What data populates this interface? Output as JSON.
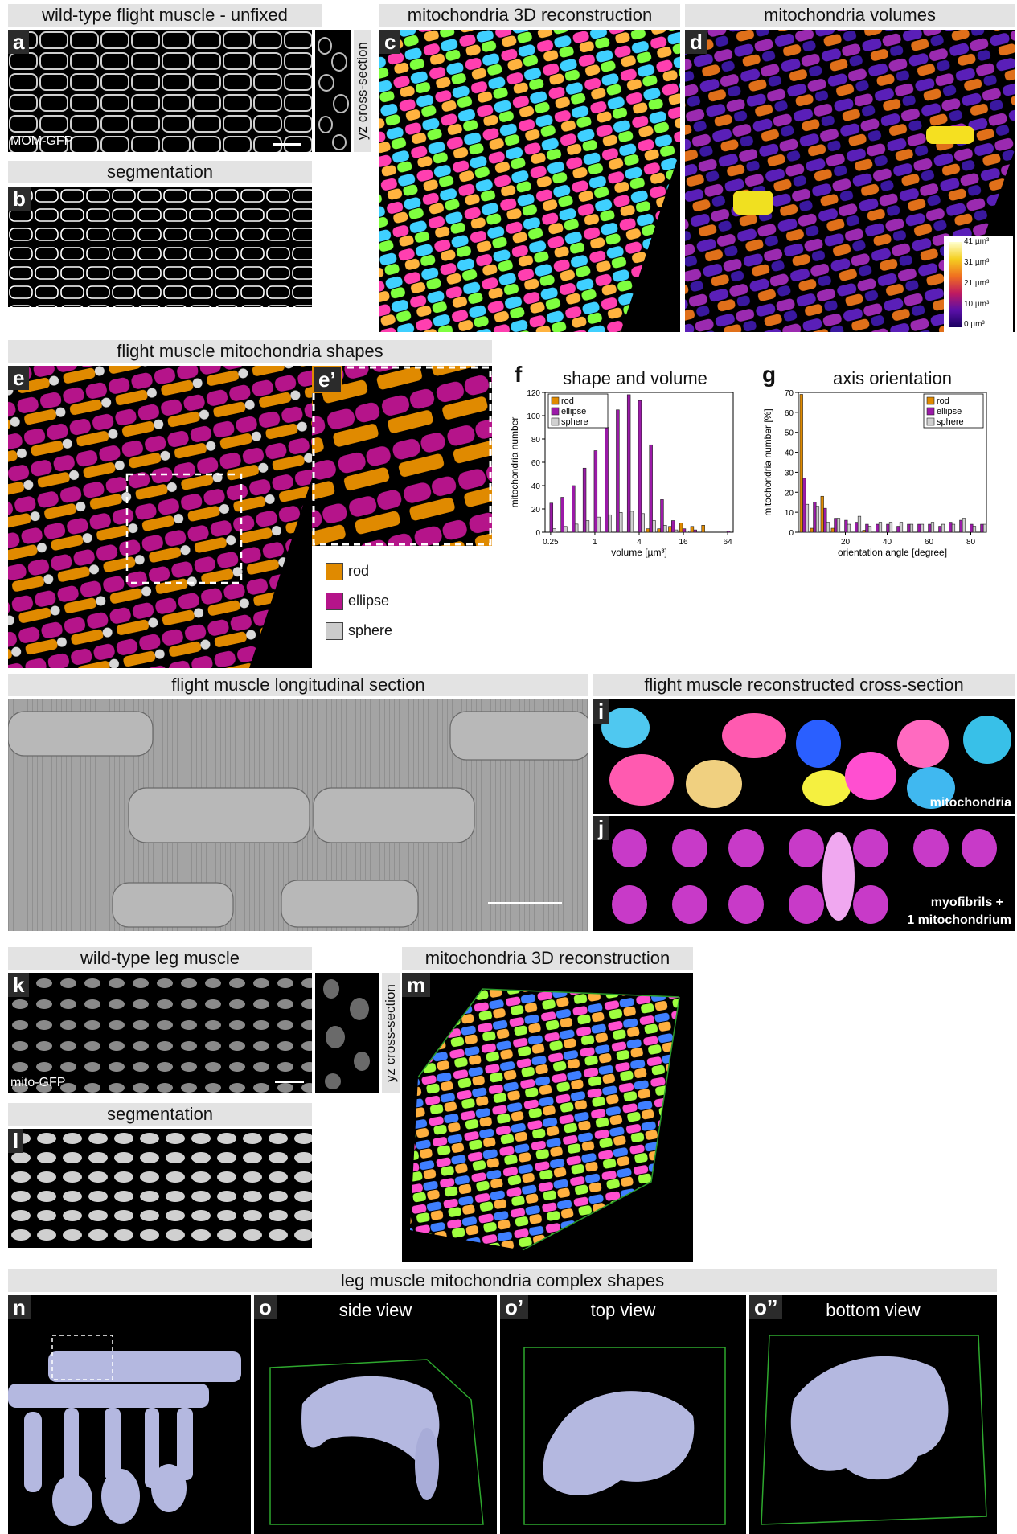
{
  "panels": {
    "a": {
      "header": "wild-type flight muscle - unfixed",
      "letter": "a",
      "caption": "MOM-GFP",
      "side": "yz cross-section"
    },
    "b": {
      "header": "segmentation",
      "letter": "b"
    },
    "c": {
      "header": "mitochondria 3D reconstruction",
      "letter": "c"
    },
    "d": {
      "header": "mitochondria volumes",
      "letter": "d",
      "colorbar": [
        "41 µm³",
        "31 µm³",
        "21 µm³",
        "10 µm³",
        "0 µm³"
      ]
    },
    "e": {
      "header": "flight muscle mitochondria shapes",
      "letter": "e",
      "inset_letter": "e’",
      "legend": [
        {
          "label": "rod",
          "color": "#e08a00"
        },
        {
          "label": "ellipse",
          "color": "#b5148a"
        },
        {
          "label": "sphere",
          "color": "#cccccc"
        }
      ]
    },
    "h": {
      "header": "flight muscle longitudinal section"
    },
    "ij": {
      "header": "flight muscle reconstructed cross-section",
      "letter_i": "i",
      "caption_i": "mitochondria",
      "letter_j": "j",
      "caption_j_1": "myofibrils +",
      "caption_j_2": "1 mitochondrium"
    },
    "k": {
      "header": "wild-type leg muscle",
      "letter": "k",
      "caption": "mito-GFP",
      "side": "yz cross-section"
    },
    "l": {
      "header": "segmentation",
      "letter": "l"
    },
    "m": {
      "header": "mitochondria 3D reconstruction",
      "letter": "m"
    },
    "n": {
      "header": "leg muscle mitochondria complex shapes",
      "letter": "n"
    },
    "o": {
      "letter": "o",
      "view": "side view"
    },
    "o1": {
      "letter": "o’",
      "view": "top view"
    },
    "o2": {
      "letter": "o’’",
      "view": "bottom view"
    }
  },
  "chart_data": [
    {
      "id": "f",
      "letter": "f",
      "type": "bar",
      "title": "shape and volume",
      "xlabel": "volume [µm³]",
      "ylabel": "mitochondria number",
      "xticks": [
        "0.25",
        "1",
        "4",
        "16",
        "64"
      ],
      "ylim": [
        0,
        120
      ],
      "yticks": [
        0,
        20,
        40,
        60,
        80,
        100,
        120
      ],
      "x": [
        0.25,
        0.35,
        0.5,
        0.7,
        1,
        1.4,
        2,
        2.8,
        4,
        5.6,
        8,
        11,
        16,
        22,
        32,
        45,
        64
      ],
      "series": [
        {
          "name": "rod",
          "color": "#e08a00",
          "values": [
            0,
            0,
            0,
            0,
            0,
            0,
            0,
            0,
            0,
            3,
            3,
            5,
            8,
            5,
            6,
            0,
            0
          ]
        },
        {
          "name": "ellipse",
          "color": "#9b1aa8",
          "values": [
            25,
            30,
            40,
            55,
            70,
            90,
            105,
            118,
            113,
            75,
            28,
            10,
            3,
            2,
            0,
            0,
            1
          ]
        },
        {
          "name": "sphere",
          "color": "#d0d0d0",
          "values": [
            3,
            5,
            7,
            10,
            13,
            15,
            17,
            18,
            16,
            10,
            6,
            2,
            1,
            0,
            0,
            0,
            0
          ]
        }
      ]
    },
    {
      "id": "g",
      "letter": "g",
      "type": "bar",
      "title": "axis orientation",
      "xlabel": "orientation angle [degree]",
      "ylabel": "mitochondria number [%]",
      "xticks": [
        "20",
        "40",
        "60",
        "80"
      ],
      "ylim": [
        0,
        70
      ],
      "yticks": [
        0,
        10,
        20,
        30,
        40,
        50,
        60,
        70
      ],
      "x": [
        2.5,
        7.5,
        12.5,
        17.5,
        22.5,
        27.5,
        32.5,
        37.5,
        42.5,
        47.5,
        52.5,
        57.5,
        62.5,
        67.5,
        72.5,
        77.5,
        82.5,
        87.5
      ],
      "series": [
        {
          "name": "rod",
          "color": "#e08a00",
          "values": [
            69,
            2,
            18,
            2,
            0,
            0,
            1,
            0,
            0,
            0,
            0,
            0,
            0,
            0,
            0,
            0,
            0,
            0
          ]
        },
        {
          "name": "ellipse",
          "color": "#9b1aa8",
          "values": [
            27,
            15,
            12,
            7,
            6,
            5,
            4,
            4,
            4,
            3,
            4,
            4,
            4,
            3,
            5,
            6,
            4,
            4
          ]
        },
        {
          "name": "sphere",
          "color": "#d0d0d0",
          "values": [
            14,
            13,
            5,
            7,
            4,
            8,
            3,
            5,
            5,
            5,
            4,
            4,
            5,
            4,
            4,
            7,
            3,
            4
          ]
        }
      ]
    }
  ]
}
